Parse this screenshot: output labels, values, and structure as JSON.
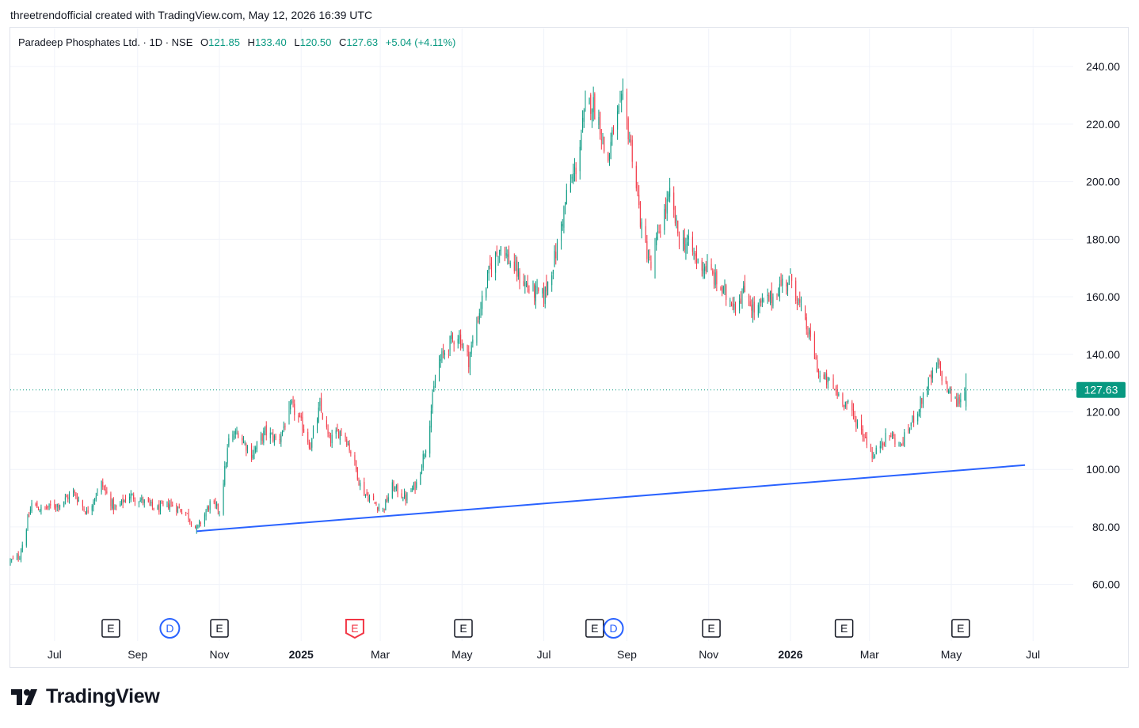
{
  "header": {
    "text": "threetrendofficial created with TradingView.com, May 12, 2026 16:39 UTC"
  },
  "legend": {
    "symbol": "Paradeep Phosphates Ltd. · 1D · NSE",
    "open_label": "O",
    "open": "121.85",
    "high_label": "H",
    "high": "133.40",
    "low_label": "L",
    "low": "120.50",
    "close_label": "C",
    "close": "127.63",
    "change": "+5.04 (+4.11%)"
  },
  "brand": {
    "name": "TradingView",
    "icon": "tradingview-logo-icon"
  },
  "colors": {
    "up": "#089981",
    "down": "#f23645",
    "trendline": "#2962ff",
    "price_tag": "#089981",
    "dividends": "#2962ff"
  },
  "chart_data": {
    "type": "candlestick",
    "symbol": "Paradeep Phosphates Ltd.",
    "interval": "1D",
    "exchange": "NSE",
    "y_range": [
      50,
      245
    ],
    "y_ticks": [
      "240.00",
      "220.00",
      "200.00",
      "180.00",
      "160.00",
      "140.00",
      "120.00",
      "100.00",
      "80.00",
      "60.00"
    ],
    "x_ticks": [
      {
        "label": "Jul",
        "date": "2024-07-01",
        "bold": false
      },
      {
        "label": "Sep",
        "date": "2024-09-01",
        "bold": false
      },
      {
        "label": "Nov",
        "date": "2024-11-01",
        "bold": false
      },
      {
        "label": "2025",
        "date": "2025-01-01",
        "bold": true
      },
      {
        "label": "Mar",
        "date": "2025-03-01",
        "bold": false
      },
      {
        "label": "May",
        "date": "2025-05-01",
        "bold": false
      },
      {
        "label": "Jul",
        "date": "2025-07-01",
        "bold": false
      },
      {
        "label": "Sep",
        "date": "2025-09-01",
        "bold": false
      },
      {
        "label": "Nov",
        "date": "2025-11-01",
        "bold": false
      },
      {
        "label": "2026",
        "date": "2026-01-01",
        "bold": true
      },
      {
        "label": "Mar",
        "date": "2026-03-01",
        "bold": false
      },
      {
        "label": "May",
        "date": "2026-05-01",
        "bold": false
      },
      {
        "label": "Jul",
        "date": "2026-07-01",
        "bold": false
      }
    ],
    "x_range": [
      "2024-05-29",
      "2026-07-31"
    ],
    "price_path": [
      [
        "2024-05-29",
        68
      ],
      [
        "2024-06-05",
        70
      ],
      [
        "2024-06-10",
        80
      ],
      [
        "2024-06-14",
        88
      ],
      [
        "2024-06-21",
        86
      ],
      [
        "2024-06-28",
        87
      ],
      [
        "2024-07-05",
        88
      ],
      [
        "2024-07-15",
        92
      ],
      [
        "2024-07-25",
        85
      ],
      [
        "2024-08-05",
        95
      ],
      [
        "2024-08-15",
        86
      ],
      [
        "2024-08-26",
        91
      ],
      [
        "2024-09-05",
        89
      ],
      [
        "2024-09-15",
        86
      ],
      [
        "2024-09-25",
        88
      ],
      [
        "2024-10-07",
        85
      ],
      [
        "2024-10-15",
        79
      ],
      [
        "2024-10-25",
        88
      ],
      [
        "2024-11-01",
        86
      ],
      [
        "2024-11-08",
        110
      ],
      [
        "2024-11-15",
        113
      ],
      [
        "2024-11-25",
        105
      ],
      [
        "2024-12-05",
        113
      ],
      [
        "2024-12-15",
        110
      ],
      [
        "2024-12-25",
        122
      ],
      [
        "2025-01-02",
        115
      ],
      [
        "2025-01-08",
        108
      ],
      [
        "2025-01-15",
        122
      ],
      [
        "2025-01-22",
        110
      ],
      [
        "2025-02-01",
        114
      ],
      [
        "2025-02-08",
        105
      ],
      [
        "2025-02-15",
        93
      ],
      [
        "2025-02-25",
        88
      ],
      [
        "2025-03-03",
        86
      ],
      [
        "2025-03-10",
        94
      ],
      [
        "2025-03-20",
        90
      ],
      [
        "2025-03-28",
        95
      ],
      [
        "2025-04-05",
        110
      ],
      [
        "2025-04-12",
        135
      ],
      [
        "2025-04-20",
        143
      ],
      [
        "2025-04-28",
        147
      ],
      [
        "2025-05-06",
        138
      ],
      [
        "2025-05-14",
        155
      ],
      [
        "2025-05-22",
        170
      ],
      [
        "2025-05-30",
        178
      ],
      [
        "2025-06-06",
        172
      ],
      [
        "2025-06-14",
        166
      ],
      [
        "2025-06-22",
        162
      ],
      [
        "2025-07-01",
        160
      ],
      [
        "2025-07-10",
        175
      ],
      [
        "2025-07-18",
        195
      ],
      [
        "2025-07-25",
        205
      ],
      [
        "2025-08-01",
        225
      ],
      [
        "2025-08-06",
        228
      ],
      [
        "2025-08-12",
        220
      ],
      [
        "2025-08-17",
        205
      ],
      [
        "2025-08-22",
        218
      ],
      [
        "2025-08-29",
        228
      ],
      [
        "2025-09-05",
        210
      ],
      [
        "2025-09-12",
        183
      ],
      [
        "2025-09-19",
        170
      ],
      [
        "2025-09-26",
        185
      ],
      [
        "2025-10-03",
        195
      ],
      [
        "2025-10-10",
        180
      ],
      [
        "2025-10-17",
        178
      ],
      [
        "2025-10-24",
        172
      ],
      [
        "2025-10-31",
        170
      ],
      [
        "2025-11-07",
        165
      ],
      [
        "2025-11-14",
        160
      ],
      [
        "2025-11-21",
        158
      ],
      [
        "2025-11-28",
        162
      ],
      [
        "2025-12-05",
        155
      ],
      [
        "2025-12-12",
        158
      ],
      [
        "2025-12-19",
        160
      ],
      [
        "2025-12-26",
        165
      ],
      [
        "2026-01-02",
        166
      ],
      [
        "2026-01-09",
        155
      ],
      [
        "2026-01-16",
        145
      ],
      [
        "2026-01-23",
        132
      ],
      [
        "2026-01-30",
        130
      ],
      [
        "2026-02-06",
        126
      ],
      [
        "2026-02-13",
        122
      ],
      [
        "2026-02-20",
        116
      ],
      [
        "2026-02-27",
        110
      ],
      [
        "2026-03-04",
        104
      ],
      [
        "2026-03-10",
        110
      ],
      [
        "2026-03-17",
        112
      ],
      [
        "2026-03-24",
        108
      ],
      [
        "2026-03-31",
        115
      ],
      [
        "2026-04-07",
        122
      ],
      [
        "2026-04-14",
        130
      ],
      [
        "2026-04-21",
        136
      ],
      [
        "2026-04-28",
        128
      ],
      [
        "2026-05-05",
        123
      ],
      [
        "2026-05-12",
        127.63
      ]
    ],
    "last_price": "127.63",
    "trendline": {
      "start": [
        "2024-10-15",
        78.5
      ],
      "end": [
        "2026-06-25",
        101.5
      ],
      "color": "#2962ff"
    },
    "last_price_line": "dotted",
    "events": [
      {
        "type": "earnings",
        "label": "E",
        "date": "2024-08-12"
      },
      {
        "type": "dividend",
        "label": "D",
        "date": "2024-09-25"
      },
      {
        "type": "earnings",
        "label": "E",
        "date": "2024-11-01"
      },
      {
        "type": "earnings-upcoming-red",
        "label": "E",
        "date": "2025-02-10"
      },
      {
        "type": "earnings",
        "label": "E",
        "date": "2025-05-02"
      },
      {
        "type": "earnings",
        "label": "E",
        "date": "2025-08-08"
      },
      {
        "type": "dividend",
        "label": "D",
        "date": "2025-08-22"
      },
      {
        "type": "earnings",
        "label": "E",
        "date": "2025-11-03"
      },
      {
        "type": "earnings",
        "label": "E",
        "date": "2026-02-10"
      },
      {
        "type": "earnings",
        "label": "E",
        "date": "2026-05-08"
      }
    ],
    "grid": true
  }
}
